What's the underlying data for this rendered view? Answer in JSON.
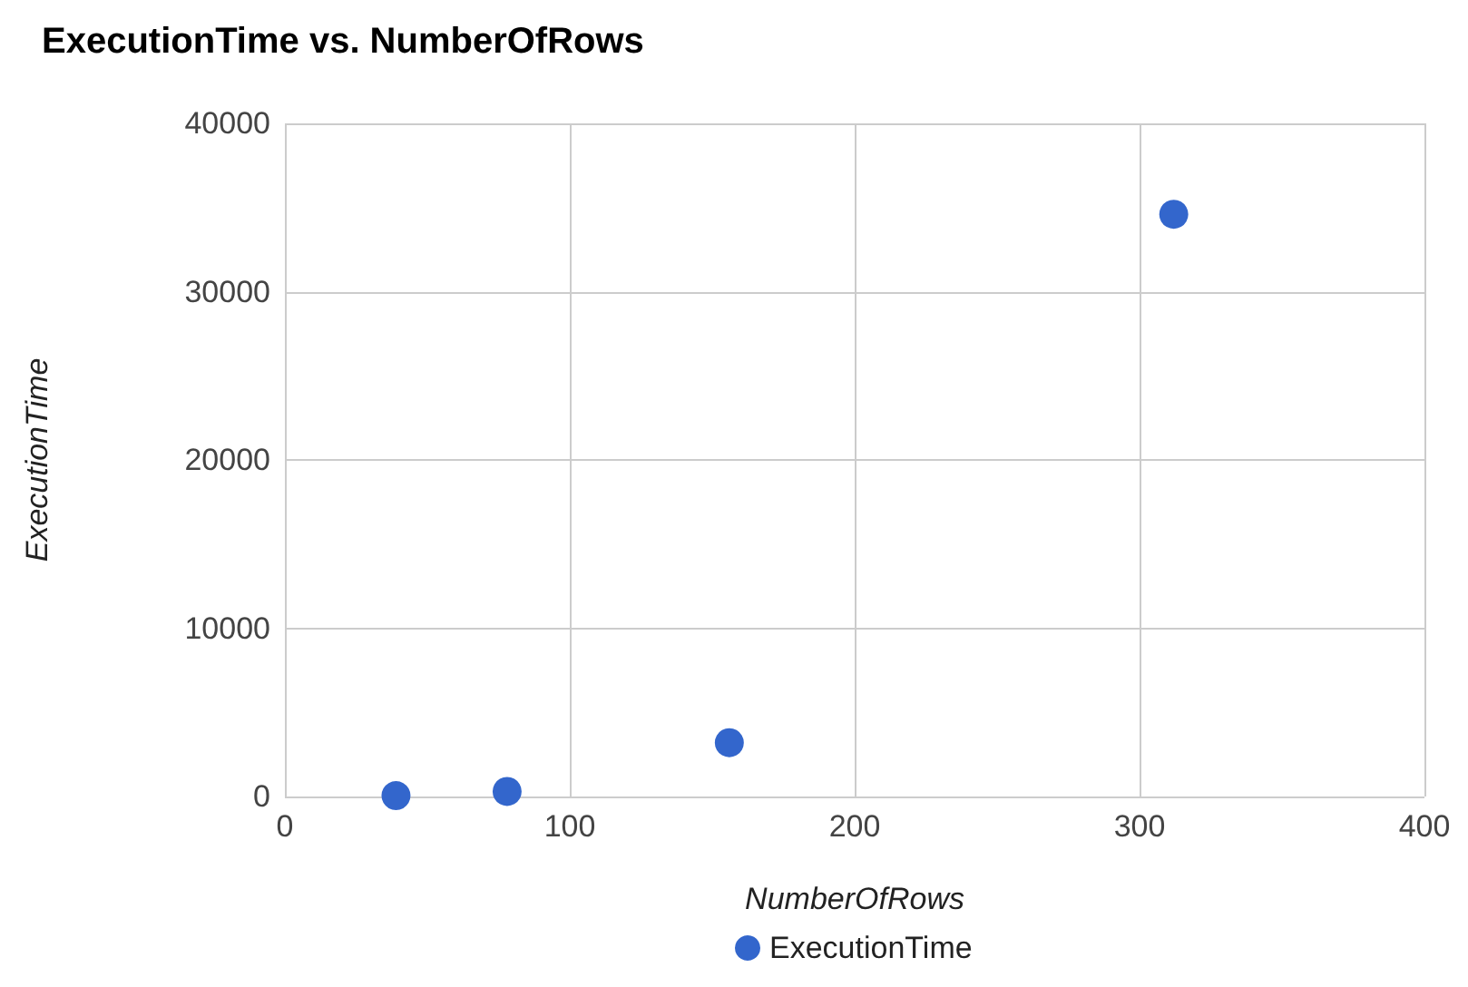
{
  "chart_data": {
    "type": "scatter",
    "title": "ExecutionTime vs. NumberOfRows",
    "xlabel": "NumberOfRows",
    "ylabel": "ExecutionTime",
    "xlim": [
      0,
      400
    ],
    "xticks": [
      0,
      100,
      200,
      300,
      400
    ],
    "ylim": [
      0,
      40000
    ],
    "yticks": [
      0,
      10000,
      20000,
      30000,
      40000
    ],
    "series": [
      {
        "name": "ExecutionTime",
        "color": "#3366cc",
        "x": [
          39,
          78,
          156,
          312
        ],
        "values": [
          50,
          300,
          3200,
          34600
        ]
      }
    ],
    "grid": true,
    "legend": "bottom",
    "marker": "circle"
  }
}
